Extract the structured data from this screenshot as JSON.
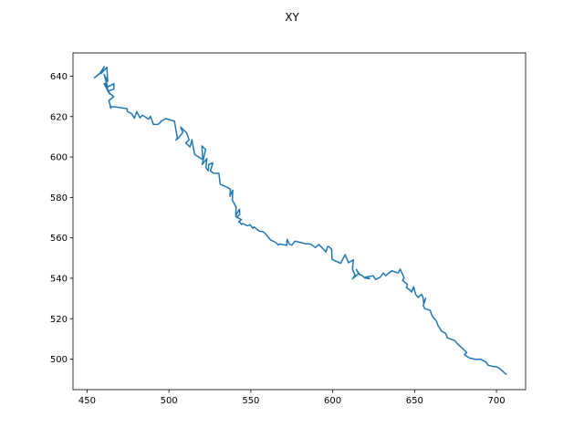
{
  "chart_data": {
    "type": "line",
    "title": "XY",
    "xlabel": "",
    "ylabel": "",
    "xlim": [
      441.4,
      717.8
    ],
    "ylim": [
      484.9,
      651.5
    ],
    "xticks": [
      450,
      500,
      550,
      600,
      650,
      700
    ],
    "yticks": [
      500,
      520,
      540,
      560,
      580,
      600,
      620,
      640
    ],
    "grid": false,
    "color": "#1f77b4",
    "series": [
      {
        "x": [
          454.5,
          457.8,
          460.5,
          458.6,
          462.1,
          462.6,
          460.4,
          462.6,
          460.4,
          463.8,
          461.1,
          462.6,
          466.4,
          466.4,
          462.6,
          466.2,
          463.3,
          464.6,
          464.1,
          468.3,
          474.5,
          474.5,
          477.2,
          478.9,
          480.3,
          482.3,
          483.8,
          487.6,
          488.7,
          490.5,
          493.4,
          494.8,
          495.1,
          498.1,
          503.4,
          504.3,
          505.1,
          504.3,
          506.0,
          508.5,
          507.1,
          510.7,
          512.3,
          510.3,
          512.8,
          513.5,
          514.0,
          515.7,
          520.7,
          520.1,
          522.4,
          520.3,
          523.2,
          522.6,
          524.1,
          524.3,
          526.8,
          525.3,
          527.2,
          530.5,
          531.3,
          535.0,
          537.6,
          537.2,
          539.0,
          538.7,
          541.0,
          540.8,
          541.2,
          543.1,
          543.2,
          541.3,
          544.2,
          542.7,
          542.8,
          544.3,
          545.0,
          547.9,
          549.5,
          551.2,
          552.0,
          555.3,
          557.2,
          558.5,
          562.1,
          565.2,
          566.8,
          567.5,
          571.9,
          572.2,
          573.6,
          575.0,
          575.9,
          576.9,
          583.7,
          586.6,
          589.4,
          591.6,
          594.2,
          595.9,
          596.8,
          597.6,
          599.4,
          599.6,
          601.7,
          604.8,
          607.6,
          609.7,
          612.6,
          612.1,
          613.6,
          612.1,
          615.8,
          614.5,
          616.6,
          617.6,
          619.8,
          622.6,
          620.2,
          624.8,
          626.1,
          629.0,
          631.0,
          632.3,
          636.0,
          639.9,
          641.2,
          643.6,
          642.7,
          645.6,
          645.0,
          647.0,
          648.3,
          649.4,
          650.7,
          652.2,
          654.3,
          655.2,
          655.6,
          656.8,
          655.3,
          656.2,
          659.6,
          660.3,
          661.4,
          663.2,
          664.4,
          666.6,
          668.9,
          670.1,
          674.5,
          676.2,
          679.6,
          681.8,
          680.4,
          683.5,
          687.0,
          690.4,
          693.6,
          694.9,
          697.7,
          700.1,
          702.4,
          704.3,
          704.4,
          705.9
        ],
        "y": [
          639.2,
          641.4,
          644.7,
          641.3,
          644.4,
          637.4,
          640.9,
          634.6,
          636.3,
          631.2,
          636.5,
          634.7,
          636.3,
          633.6,
          632.5,
          629.8,
          627.9,
          624.1,
          624.9,
          624.7,
          623.9,
          622.6,
          621.4,
          619.2,
          622.5,
          619.4,
          620.7,
          618.7,
          620.1,
          616.1,
          616.2,
          617.1,
          617.7,
          619.0,
          617.7,
          613.2,
          609.5,
          608.4,
          609.6,
          612.2,
          614.8,
          612.1,
          608.5,
          606.9,
          605.0,
          606.9,
          608.6,
          601.2,
          598.7,
          605.5,
          603.7,
          596.3,
          599.2,
          594.7,
          593.2,
          596.3,
          597.1,
          593.1,
          592.0,
          591.9,
          586.5,
          585.2,
          584.1,
          580.6,
          583.6,
          578.7,
          575.3,
          570.6,
          571.7,
          574.2,
          571.5,
          570.2,
          569.1,
          567.8,
          568.3,
          566.6,
          567.1,
          566.0,
          566.5,
          564.8,
          565.4,
          563.3,
          563.1,
          562.4,
          558.9,
          557.7,
          556.4,
          557.0,
          556.3,
          559.2,
          556.9,
          556.4,
          557.3,
          558.4,
          557.1,
          556.9,
          555.2,
          556.7,
          554.5,
          553.0,
          555.6,
          555.7,
          554.3,
          549.4,
          548.6,
          547.4,
          551.7,
          547.7,
          549.1,
          544.4,
          541.6,
          539.7,
          542.3,
          544.3,
          541.7,
          541.6,
          540.1,
          539.8,
          540.6,
          541.2,
          539.4,
          540.5,
          542.6,
          541.3,
          543.7,
          542.6,
          544.5,
          540.3,
          538.9,
          537.0,
          535.3,
          534.3,
          533.2,
          535.8,
          531.9,
          530.5,
          532.1,
          530.5,
          527.6,
          530.1,
          526.5,
          525.0,
          524.1,
          522.2,
          520.7,
          519.0,
          516.5,
          513.7,
          512.8,
          510.5,
          509.2,
          507.6,
          505.0,
          503.3,
          502.1,
          500.6,
          499.9,
          499.9,
          498.6,
          497.0,
          496.4,
          496.2,
          495.1,
          493.7,
          493.5,
          492.6
        ]
      }
    ]
  }
}
